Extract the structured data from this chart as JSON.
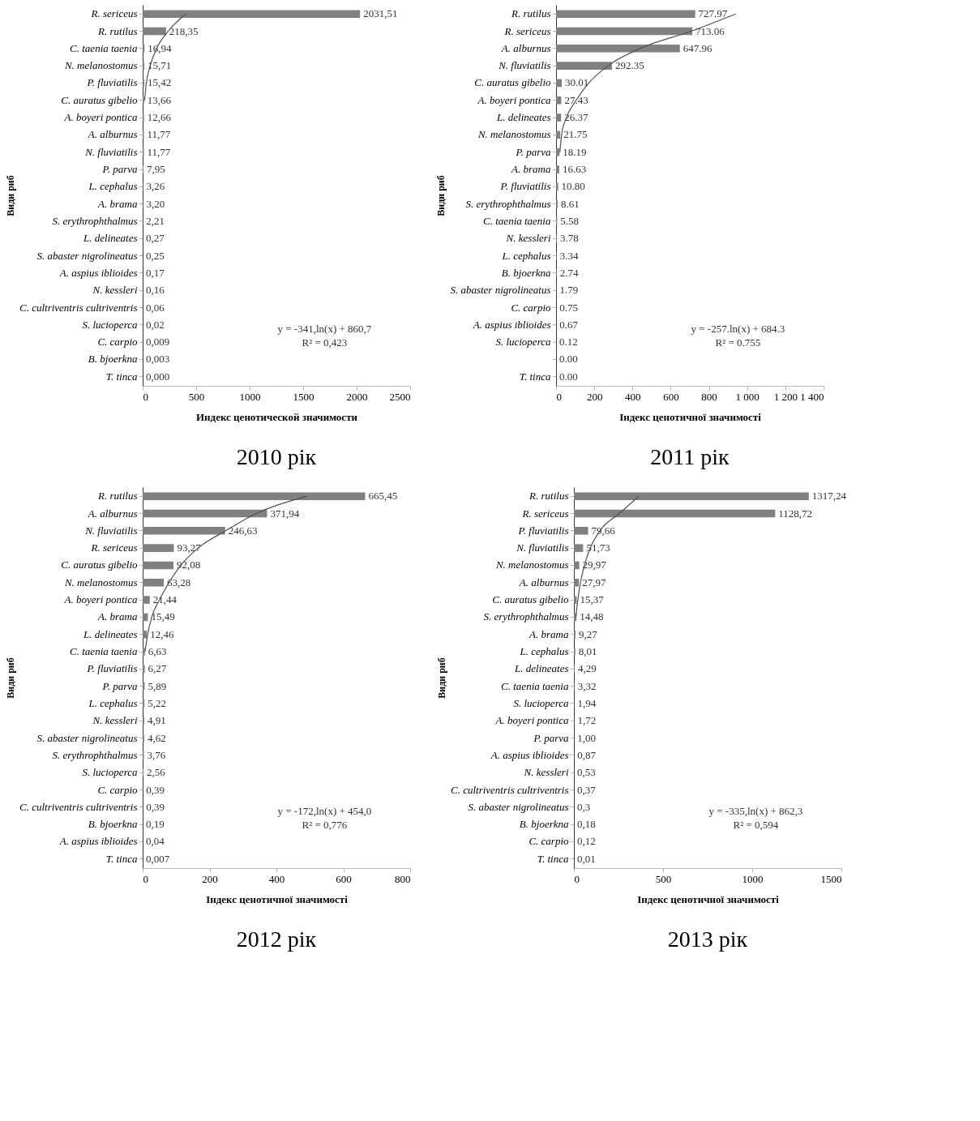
{
  "chart_data": [
    {
      "type": "bar",
      "orientation": "horizontal",
      "title": "2010 рік",
      "xlabel": "Индекс ценотической значимости",
      "ylabel": "Види риб",
      "categories": [
        "R. sericeus",
        "R. rutilus",
        "C. taenia taenia",
        "N. melanostomus",
        "P. fluviatilis",
        "C. auratus gibelio",
        "A. boyeri pontica",
        "A. alburnus",
        "N. fluviatilis",
        "P. parva",
        "L. cephalus",
        "A. brama",
        "S. erythrophthalmus",
        "L. delineates",
        "S. abaster nigrolineatus",
        "A. aspius iblioides",
        "N. kessleri",
        "C. cultriventris cultriventris",
        "S. lucioperca",
        "C. carpio",
        "B. bjoerkna",
        "T. tinca"
      ],
      "series": [
        {
          "color": "#808080",
          "values": [
            2031.51,
            218.35,
            16.94,
            15.71,
            15.42,
            13.66,
            12.66,
            11.77,
            11.77,
            7.95,
            3.26,
            3.2,
            2.21,
            0.27,
            0.25,
            0.17,
            0.16,
            0.06,
            0.02,
            0.009,
            0.003,
            0.0
          ],
          "value_labels": [
            "2031,51",
            "218,35",
            "16,94",
            "15,71",
            "15,42",
            "13,66",
            "12,66",
            "11,77",
            "11,77",
            "7,95",
            "3,26",
            "3,20",
            "2,21",
            "0,27",
            "0,25",
            "0,17",
            "0,16",
            "0,06",
            "0,02",
            "0,009",
            "0,003",
            "0,000"
          ]
        },
        {
          "type": "line",
          "color": "#505050",
          "values": [
            405,
            238,
            131,
            70,
            34,
            18,
            null,
            null,
            null,
            null,
            null,
            null,
            null,
            null,
            null,
            null,
            null,
            null,
            null,
            null,
            null,
            null
          ]
        }
      ],
      "xlim": [
        0,
        2500
      ],
      "xticks": [
        0,
        500,
        1000,
        1500,
        2000,
        2500
      ],
      "annotations": [
        "y = -341,ln(x) + 860,7",
        "R² = 0,423"
      ]
    },
    {
      "type": "bar",
      "orientation": "horizontal",
      "title": "2011 рік",
      "xlabel": "Індекс ценотичної значимості",
      "ylabel": "Види риб",
      "categories": [
        "R. rutilus",
        "R. sericeus",
        "A. alburnus",
        "N. fluviatilis",
        "C. auratus gibelio",
        "A. boyeri pontica",
        "L. delineates",
        "N. melanostomus",
        "P. parva",
        "A. brama",
        "P. fluviatilis",
        "S. erythrophthalmus",
        "C. taenia taenia",
        "N. kessleri",
        "L. cephalus",
        "B. bjoerkna",
        "S. abaster nigrolineatus",
        "C. carpio",
        "A. aspius iblioides",
        "S. lucioperca",
        null,
        "T. tinca"
      ],
      "series": [
        {
          "color": "#808080",
          "values": [
            727.97,
            713.06,
            647.96,
            292.35,
            30.01,
            27.43,
            26.37,
            21.75,
            18.19,
            16.63,
            10.8,
            8.61,
            5.58,
            3.78,
            3.34,
            2.74,
            1.79,
            0.75,
            0.67,
            0.12,
            0.0,
            0.0
          ],
          "value_labels": [
            "727.97",
            "713.06",
            "647.96",
            "292.35",
            "30.01",
            "27.43",
            "26.37",
            "21.75",
            "18.19",
            "16.63",
            "10.80",
            "8.61",
            "5.58",
            "3.78",
            "3.34",
            "2.74",
            "1.79",
            "0.75",
            "0.67",
            "0.12",
            "0.00",
            "0.00"
          ]
        },
        {
          "type": "line",
          "color": "#505050",
          "values": [
            940,
            707,
            440,
            272,
            171,
            105,
            54,
            29,
            20,
            null,
            null,
            null,
            null,
            null,
            null,
            null,
            null,
            null,
            null,
            null,
            null,
            null
          ]
        }
      ],
      "xlim": [
        0,
        1400
      ],
      "xticks": [
        0,
        200,
        400,
        600,
        800,
        {
          "value": 1000,
          "label": "1 000"
        },
        {
          "value": 1200,
          "label": "1 200"
        },
        {
          "value": 1400,
          "label": "1 400"
        }
      ],
      "annotations": [
        "y = -257.ln(x) + 684.3",
        "R² = 0.755"
      ]
    },
    {
      "type": "bar",
      "orientation": "horizontal",
      "title": "2012 рік",
      "xlabel": "Індекс ценотичної значимості",
      "ylabel": "Види риб",
      "categories": [
        "R. rutilus",
        "A. alburnus",
        "N. fluviatilis",
        "R. sericeus",
        "C. auratus gibelio",
        "N. melanostomus",
        "A. boyeri pontica",
        "A. brama",
        "L. delineates",
        "C. taenia taenia",
        "P. fluviatilis",
        "P. parva",
        "L. cephalus",
        "N. kessleri",
        "S. abaster nigrolineatus",
        "S. erythrophthalmus",
        "S. lucioperca",
        "C. carpio",
        "C. cultriventris cultriventris",
        "B. bjoerkna",
        "A. aspius iblioides",
        "T. tinca"
      ],
      "series": [
        {
          "color": "#808080",
          "values": [
            665.45,
            371.94,
            246.63,
            93.27,
            92.08,
            63.28,
            21.44,
            15.49,
            12.46,
            6.63,
            6.27,
            5.89,
            5.22,
            4.91,
            4.62,
            3.76,
            2.56,
            0.39,
            0.39,
            0.19,
            0.04,
            0.007
          ],
          "value_labels": [
            "665,45",
            "371,94",
            "246,63",
            "93,27",
            "92,08",
            "63,28",
            "21,44",
            "15,49",
            "12,46",
            "6,63",
            "6,27",
            "5,89",
            "5,22",
            "4,91",
            "4,62",
            "3,76",
            "2,56",
            "0,39",
            "0,39",
            "0,19",
            "0,04",
            "0,007"
          ]
        },
        {
          "type": "line",
          "color": "#505050",
          "values": [
            492,
            340,
            248,
            166,
            114,
            79,
            50,
            27,
            15,
            7,
            null,
            null,
            null,
            null,
            null,
            null,
            null,
            null,
            null,
            null,
            null,
            null
          ]
        }
      ],
      "xlim": [
        0,
        800
      ],
      "xticks": [
        0,
        200,
        400,
        600,
        800
      ],
      "annotations": [
        "y = -172,ln(x) + 454,0",
        "R² = 0,776"
      ]
    },
    {
      "type": "bar",
      "orientation": "horizontal",
      "title": "2013 рік",
      "xlabel": "Індекс ценотичної значимості",
      "ylabel": "Види риб",
      "categories": [
        "R. rutilus",
        "R. sericeus",
        "P. fluviatilis",
        "N. fluviatilis",
        "N. melanostomus",
        "A. alburnus",
        "C. auratus gibelio",
        "S. erythrophthalmus",
        "A. brama",
        "L. cephalus",
        "L. delineates",
        "C. taenia taenia",
        "S. lucioperca",
        "A. boyeri pontica",
        "P. parva",
        "A. aspius iblioides",
        "N. kessleri",
        "C. cultriventris cultriventris",
        "S. abaster nigrolineatus",
        "B. bjoerkna",
        "C. carpio",
        "T. tinca"
      ],
      "series": [
        {
          "color": "#808080",
          "values": [
            1317.24,
            1128.72,
            79.66,
            51.73,
            29.97,
            27.97,
            15.37,
            14.48,
            9.27,
            8.01,
            4.29,
            3.32,
            1.94,
            1.72,
            1.0,
            0.87,
            0.53,
            0.37,
            0.3,
            0.18,
            0.12,
            0.01
          ],
          "value_labels": [
            "1317,24",
            "1128,72",
            "79,66",
            "51,73",
            "29,97",
            "27,97",
            "15,37",
            "14,48",
            "9,27",
            "8,01",
            "4,29",
            "3,32",
            "1,94",
            "1,72",
            "1,00",
            "0,87",
            "0,53",
            "0,37",
            "0,3",
            "0,18",
            "0,12",
            "0,01"
          ]
        },
        {
          "type": "line",
          "color": "#505050",
          "values": [
            364,
            255,
            146,
            92,
            59,
            37,
            22,
            11,
            null,
            null,
            null,
            null,
            null,
            null,
            null,
            null,
            null,
            null,
            null,
            null,
            null,
            null
          ]
        }
      ],
      "xlim": [
        0,
        1500
      ],
      "xticks": [
        0,
        500,
        1000,
        1500
      ],
      "annotations": [
        "y = -335,ln(x) + 862,3",
        "R² = 0,594"
      ]
    }
  ]
}
